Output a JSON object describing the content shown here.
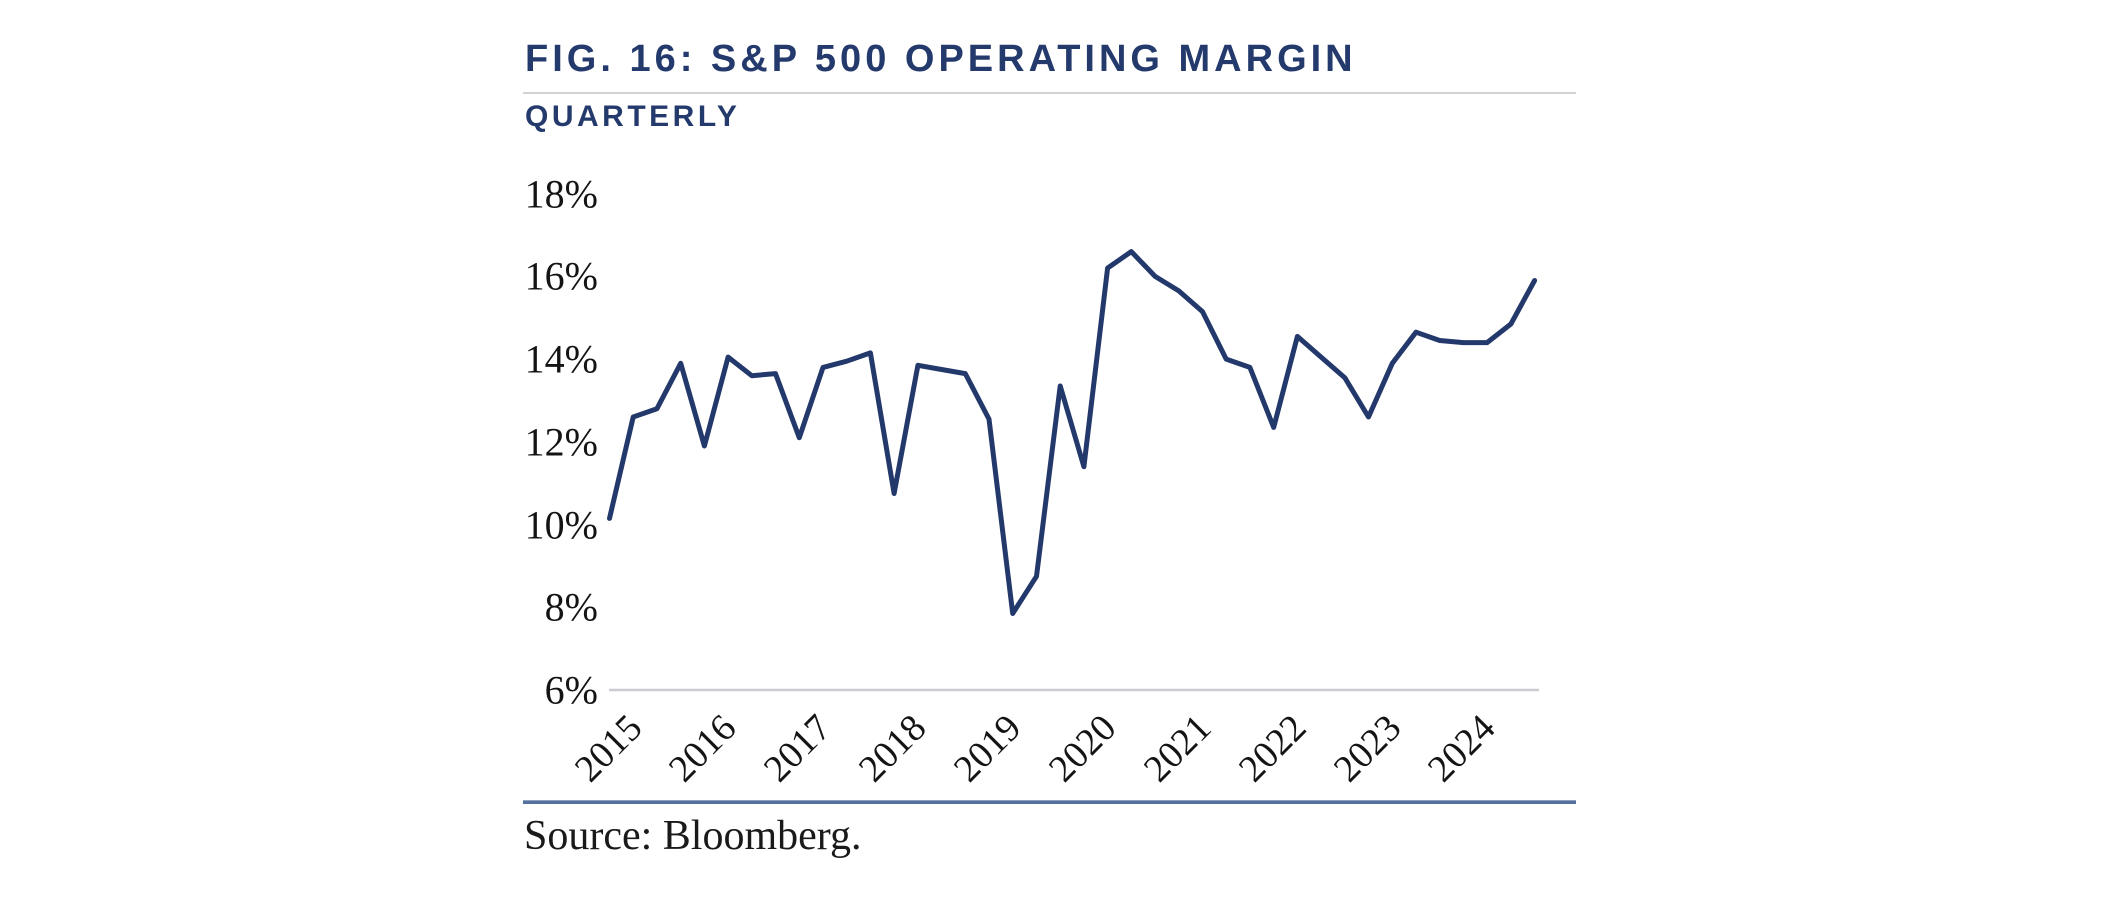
{
  "header": {
    "title": "FIG. 16: S&P 500 OPERATING MARGIN",
    "subtitle": "QUARTERLY",
    "title_color": "#243a6d"
  },
  "chart_data": {
    "type": "line",
    "title": "FIG. 16: S&P 500 OPERATING MARGIN",
    "subtitle": "QUARTERLY",
    "series_name": "S&P 500 operating margin (%)",
    "categories": [
      "2015Q1",
      "2015Q2",
      "2015Q3",
      "2015Q4",
      "2016Q1",
      "2016Q2",
      "2016Q3",
      "2016Q4",
      "2017Q1",
      "2017Q2",
      "2017Q3",
      "2017Q4",
      "2018Q1",
      "2018Q2",
      "2018Q3",
      "2018Q4",
      "2019Q1",
      "2019Q2",
      "2019Q3",
      "2019Q4",
      "2020Q1",
      "2020Q2",
      "2020Q3",
      "2020Q4",
      "2021Q1",
      "2021Q2",
      "2021Q3",
      "2021Q4",
      "2022Q1",
      "2022Q2",
      "2022Q3",
      "2022Q4",
      "2023Q1",
      "2023Q2",
      "2023Q3",
      "2023Q4",
      "2024Q1",
      "2024Q2",
      "2024Q3",
      "2024Q4"
    ],
    "values": [
      10.15,
      12.6,
      12.8,
      13.9,
      11.9,
      14.05,
      13.6,
      13.65,
      12.1,
      13.8,
      13.95,
      14.15,
      10.75,
      13.85,
      13.75,
      13.65,
      12.55,
      7.85,
      8.75,
      13.35,
      11.4,
      16.2,
      16.6,
      16.0,
      15.65,
      15.15,
      14.0,
      13.8,
      12.35,
      14.55,
      14.05,
      13.55,
      12.6,
      13.9,
      14.65,
      14.45,
      14.4,
      14.4,
      14.85,
      15.9
    ],
    "x_tick_labels": [
      "2015",
      "2016",
      "2017",
      "2018",
      "2019",
      "2020",
      "2021",
      "2022",
      "2023",
      "2024"
    ],
    "y_tick_labels": [
      "18%",
      "16%",
      "14%",
      "12%",
      "10%",
      "8%",
      "6%"
    ],
    "y_tick_values": [
      18,
      16,
      14,
      12,
      10,
      8,
      6
    ],
    "ylim": [
      6,
      18
    ],
    "xlabel": "",
    "ylabel": "",
    "grid": false,
    "legend": "none",
    "line_color": "#24396b",
    "axis_line_color": "#c9cdd1"
  },
  "footer": {
    "source": "Source: Bloomberg."
  }
}
